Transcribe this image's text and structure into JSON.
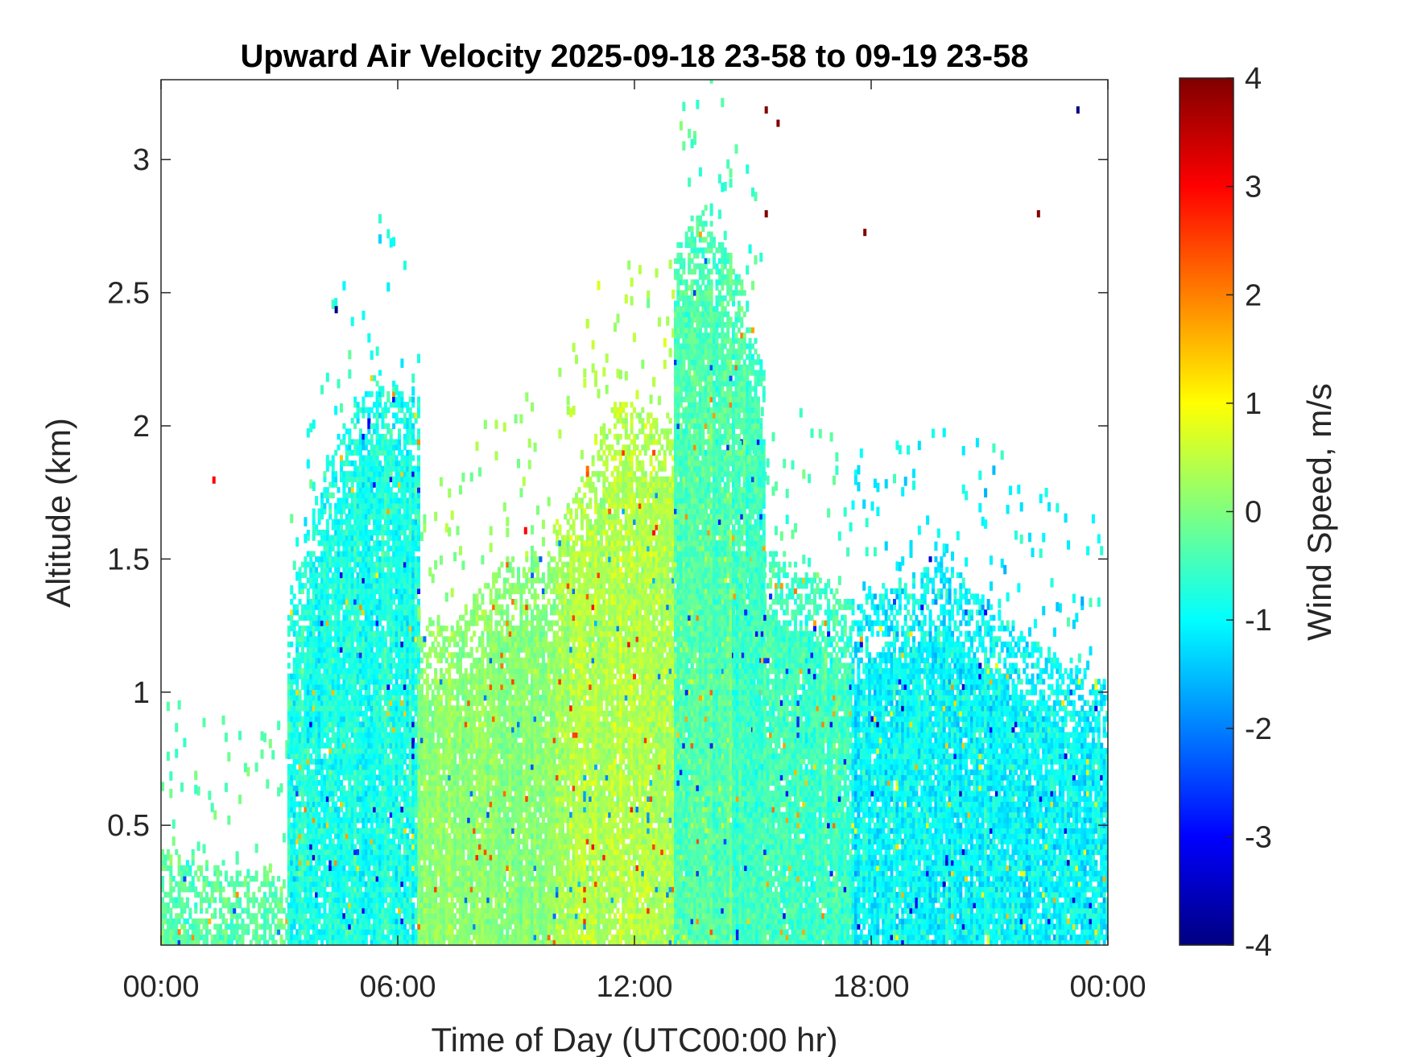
{
  "chart_data": {
    "type": "heatmap",
    "title": "Upward Air Velocity 2025-09-18 23-58 to 09-19 23-58",
    "xlabel": "Time of Day (UTC00:00 hr)",
    "ylabel": "Altitude (km)",
    "x_tick_labels": [
      "00:00",
      "06:00",
      "12:00",
      "18:00",
      "00:00"
    ],
    "x_tick_values_hr": [
      0,
      6,
      12,
      18,
      24
    ],
    "xlim_hr": [
      0,
      24
    ],
    "y_ticks": [
      0.5,
      1,
      1.5,
      2,
      2.5,
      3
    ],
    "y_tick_labels": [
      "0.5",
      "1",
      "1.5",
      "2",
      "2.5",
      "3"
    ],
    "ylim_km": [
      0.05,
      3.3
    ],
    "grid": false,
    "colorbar": {
      "label": "Wind Speed, m/s",
      "colormap": "jet",
      "range": [
        -4,
        4
      ],
      "ticks": [
        -4,
        -3,
        -2,
        -1,
        0,
        1,
        2,
        3,
        4
      ],
      "tick_labels": [
        "-4",
        "-3",
        "-2",
        "-1",
        "0",
        "1",
        "2",
        "3",
        "4"
      ]
    },
    "echo_regions": [
      {
        "t": [
          0.0,
          3.2
        ],
        "alt_max_km": [
          0.4,
          0.35,
          0.3,
          0.28
        ],
        "mean_ms": -0.3
      },
      {
        "t": [
          3.2,
          6.5
        ],
        "alt_max_km": [
          1.3,
          1.9,
          2.2,
          2.1
        ],
        "mean_ms": -0.8
      },
      {
        "t": [
          6.5,
          10.0
        ],
        "alt_max_km": [
          1.2,
          1.3,
          1.5,
          1.5
        ],
        "mean_ms": 0.1
      },
      {
        "t": [
          10.0,
          14.5
        ],
        "alt_max_km": [
          1.6,
          2.1,
          2.0,
          1.7
        ],
        "mean_ms": 0.4
      },
      {
        "t": [
          13.0,
          15.3
        ],
        "alt_max_km": [
          2.7,
          2.8,
          2.6,
          2.2
        ],
        "mean_ms": -0.4
      },
      {
        "t": [
          14.5,
          17.5
        ],
        "alt_max_km": [
          1.5,
          1.5,
          1.45,
          1.3
        ],
        "mean_ms": -0.5
      },
      {
        "t": [
          17.5,
          24.0
        ],
        "alt_max_km": [
          1.3,
          1.5,
          1.2,
          1.0
        ],
        "mean_ms": -1.0
      }
    ],
    "isolated_strong_returns": [
      {
        "t_hr": 15.3,
        "alt_km": 3.18,
        "value_ms": 4
      },
      {
        "t_hr": 15.6,
        "alt_km": 3.13,
        "value_ms": 4
      },
      {
        "t_hr": 15.3,
        "alt_km": 2.79,
        "value_ms": 4
      },
      {
        "t_hr": 17.8,
        "alt_km": 2.72,
        "value_ms": 4
      },
      {
        "t_hr": 22.2,
        "alt_km": 2.79,
        "value_ms": 4
      },
      {
        "t_hr": 23.2,
        "alt_km": 3.18,
        "value_ms": -4
      },
      {
        "t_hr": 4.4,
        "alt_km": 2.43,
        "value_ms": -4
      },
      {
        "t_hr": 1.3,
        "alt_km": 1.79,
        "value_ms": 3
      },
      {
        "t_hr": 9.2,
        "alt_km": 1.6,
        "value_ms": 3
      }
    ]
  }
}
